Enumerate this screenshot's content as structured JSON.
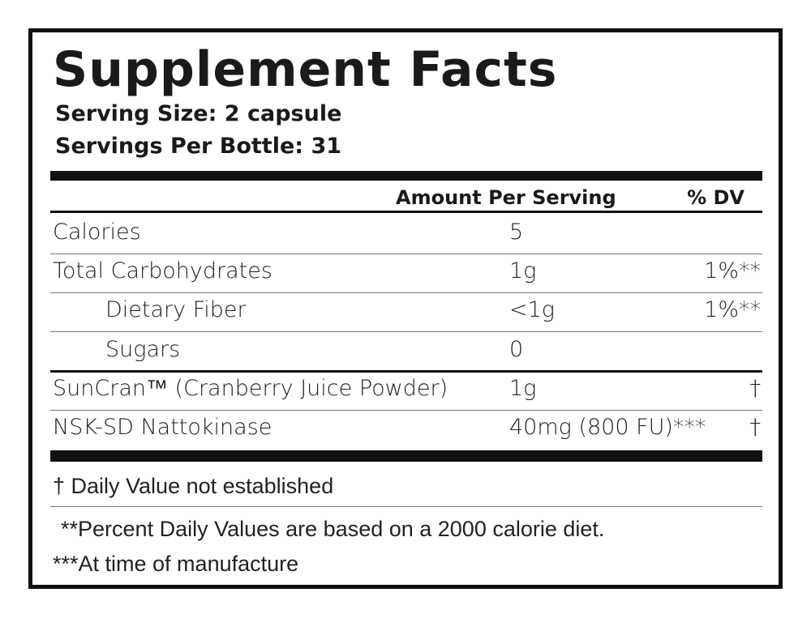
{
  "title": "Supplement Facts",
  "serving_size": "Serving Size: 2 capsule",
  "servings_per_container": "Servings Per Bottle: 31",
  "header": {
    "amount": "Amount Per Serving",
    "dv": "% DV"
  },
  "rows": [
    {
      "name": "Calories",
      "amount": "5",
      "indent": false
    },
    {
      "name": "Total Carbohydrates",
      "amount": "1g",
      "dv": "1%**",
      "indent": false
    },
    {
      "name": "Dietary Fiber",
      "amount": "<1g",
      "dv": "1%**",
      "indent": true
    },
    {
      "name": "Sugars",
      "amount": "0",
      "indent": true
    },
    {
      "name": "SunCran™ (Cranberry Juice Powder)",
      "amount": "1g",
      "dv": "†",
      "indent": false
    },
    {
      "name": "NSK-SD Nattokinase",
      "amount": "40mg (800 FU)***",
      "dv": "†",
      "indent": false
    }
  ],
  "footnotes": [
    "† Daily Value not established",
    "**Percent Daily Values are based on a 2000 calorie diet.",
    "***At time of manufacture"
  ]
}
